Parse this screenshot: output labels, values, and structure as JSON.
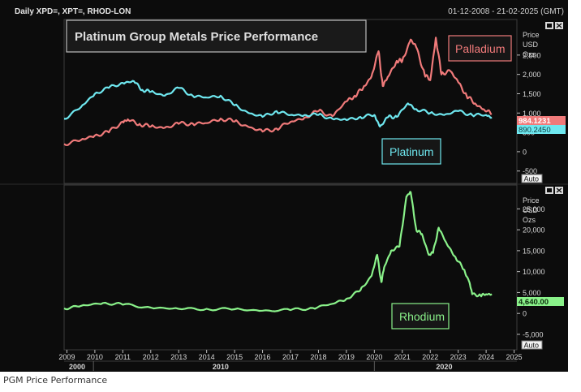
{
  "header": {
    "symbols": "Daily XPD=, XPT=, RHOD-LON",
    "date_range": "01-12-2008 - 21-02-2025 (GMT)"
  },
  "caption": "PGM Price Performance",
  "colors": {
    "background": "#0c0c0c",
    "palladium": "#f07a7a",
    "platinum": "#6fe8f0",
    "rhodium": "#8af28a",
    "axis_text": "#d8d8d8"
  },
  "chart_data": [
    {
      "type": "line",
      "title": "Platinum Group Metals Price Performance",
      "ylabel": "Price USD Ozs",
      "ylabel_lines": [
        "Price",
        "USD",
        "Ozs"
      ],
      "ylim": [
        -800,
        3400
      ],
      "yticks": [
        -500,
        0,
        500,
        1000,
        1500,
        2000,
        2500
      ],
      "ytick_labels": [
        "-500",
        "0",
        "500",
        "1,000",
        "1,500",
        "2,000",
        "2,500"
      ],
      "auto_label": "Auto",
      "series": [
        {
          "name": "Palladium",
          "label": "Palladium",
          "last_value": "984.1231",
          "x": [
            2008.9,
            2009.5,
            2010.0,
            2010.5,
            2011.0,
            2011.2,
            2011.6,
            2012.0,
            2012.5,
            2013.0,
            2013.5,
            2014.0,
            2014.5,
            2015.0,
            2015.5,
            2016.0,
            2016.5,
            2017.0,
            2017.5,
            2018.0,
            2018.5,
            2019.0,
            2019.3,
            2019.6,
            2019.9,
            2020.15,
            2020.3,
            2020.5,
            2020.8,
            2021.0,
            2021.3,
            2021.5,
            2021.8,
            2022.0,
            2022.2,
            2022.4,
            2022.7,
            2023.0,
            2023.3,
            2023.6,
            2023.9,
            2024.2
          ],
          "y": [
            200,
            300,
            420,
            500,
            780,
            820,
            720,
            650,
            620,
            720,
            730,
            740,
            860,
            780,
            640,
            520,
            600,
            770,
            880,
            1050,
            920,
            1300,
            1450,
            1650,
            1950,
            2600,
            1700,
            1950,
            2350,
            2350,
            2900,
            2700,
            2000,
            1850,
            2950,
            2000,
            2100,
            1800,
            1450,
            1250,
            1100,
            984
          ]
        },
        {
          "name": "Platinum",
          "label": "Platinum",
          "last_value": "890.2450",
          "x": [
            2008.9,
            2009.5,
            2010.0,
            2010.5,
            2011.0,
            2011.4,
            2011.7,
            2012.0,
            2012.5,
            2013.0,
            2013.5,
            2014.0,
            2014.5,
            2015.0,
            2015.5,
            2016.0,
            2016.5,
            2017.0,
            2017.5,
            2018.0,
            2018.5,
            2019.0,
            2019.5,
            2020.0,
            2020.2,
            2020.5,
            2020.8,
            2021.2,
            2021.5,
            2022.0,
            2022.5,
            2023.0,
            2023.5,
            2024.0,
            2024.2
          ],
          "y": [
            850,
            1150,
            1500,
            1650,
            1780,
            1820,
            1600,
            1550,
            1450,
            1650,
            1450,
            1400,
            1450,
            1200,
            1000,
            900,
            1050,
            950,
            950,
            950,
            850,
            820,
            900,
            950,
            650,
            900,
            900,
            1250,
            1100,
            1000,
            950,
            1050,
            950,
            950,
            890
          ]
        }
      ]
    },
    {
      "type": "line",
      "ylabel": "Price USD Ozs",
      "ylabel_lines": [
        "Price",
        "USD",
        "Ozs"
      ],
      "ylim": [
        -8500,
        30500
      ],
      "yticks": [
        -5000,
        0,
        5000,
        10000,
        15000,
        20000,
        25000
      ],
      "ytick_labels": [
        "-5,000",
        "0",
        "5,000",
        "10,000",
        "15,000",
        "20,000",
        "25,000"
      ],
      "auto_label": "Auto",
      "xlim": [
        2008.9,
        2025.1
      ],
      "xticks": [
        2009,
        2010,
        2011,
        2012,
        2013,
        2014,
        2015,
        2016,
        2017,
        2018,
        2019,
        2020,
        2021,
        2022,
        2023,
        2024,
        2025
      ],
      "xtick_labels": [
        "2009",
        "2010",
        "2011",
        "2012",
        "2013",
        "2014",
        "2015",
        "2016",
        "2017",
        "2018",
        "2019",
        "2020",
        "2021",
        "2022",
        "2023",
        "2024",
        "2025"
      ],
      "decades": [
        "2000",
        "2010",
        "2020"
      ],
      "series": [
        {
          "name": "Rhodium",
          "label": "Rhodium",
          "last_value": "4,640.00",
          "x": [
            2008.9,
            2009.5,
            2010.3,
            2011.0,
            2012.0,
            2013.0,
            2014.0,
            2015.0,
            2016.0,
            2017.0,
            2017.8,
            2018.5,
            2019.0,
            2019.5,
            2019.9,
            2020.1,
            2020.25,
            2020.35,
            2020.6,
            2020.9,
            2021.15,
            2021.3,
            2021.5,
            2021.7,
            2021.95,
            2022.1,
            2022.3,
            2022.6,
            2022.9,
            2023.2,
            2023.4,
            2023.5,
            2023.8,
            2024.0,
            2024.2
          ],
          "y": [
            1200,
            1800,
            2500,
            2100,
            1400,
            1100,
            1100,
            1000,
            650,
            800,
            1300,
            2300,
            3500,
            5500,
            9000,
            14000,
            7500,
            11000,
            15000,
            16000,
            28000,
            29000,
            20000,
            19000,
            14000,
            14500,
            20500,
            16500,
            13500,
            10500,
            7500,
            4600,
            4300,
            4600,
            4640
          ]
        }
      ]
    }
  ]
}
